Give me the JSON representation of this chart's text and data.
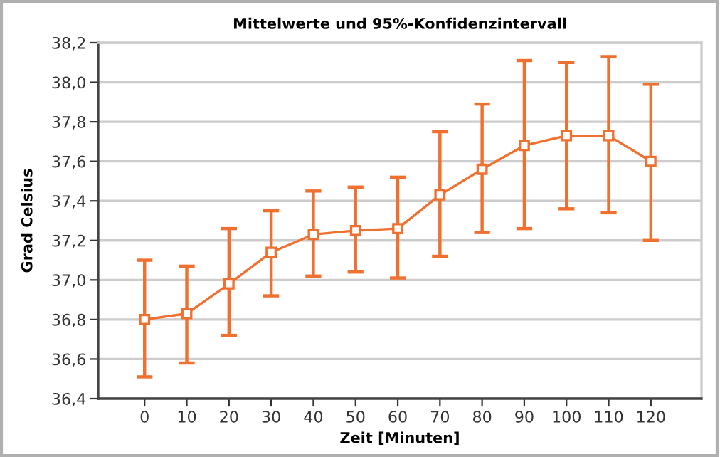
{
  "chart_data": {
    "type": "line",
    "title": "Mittelwerte und 95%-Konfidenzintervall",
    "xlabel": "Zeit [Minuten]",
    "ylabel": "Grad Celsius",
    "x": [
      0,
      10,
      20,
      30,
      40,
      50,
      60,
      70,
      80,
      90,
      100,
      110,
      120
    ],
    "series": [
      {
        "color": "#f07030",
        "values": [
          36.8,
          36.83,
          36.98,
          37.14,
          37.23,
          37.25,
          37.26,
          37.43,
          37.56,
          37.68,
          37.73,
          37.73,
          37.6
        ],
        "errors": [
          [
            36.51,
            37.1
          ],
          [
            36.58,
            37.07
          ],
          [
            36.72,
            37.26
          ],
          [
            36.92,
            37.35
          ],
          [
            37.02,
            37.45
          ],
          [
            37.04,
            37.47
          ],
          [
            37.01,
            37.52
          ],
          [
            37.12,
            37.75
          ],
          [
            37.24,
            37.89
          ],
          [
            37.26,
            38.11
          ],
          [
            37.36,
            38.1
          ],
          [
            37.34,
            38.13
          ],
          [
            37.2,
            37.99
          ]
        ]
      }
    ],
    "xlim": [
      -11,
      132
    ],
    "xticks": [
      0,
      10,
      20,
      30,
      40,
      50,
      60,
      70,
      80,
      90,
      100,
      110,
      120
    ],
    "ylim": [
      36.4,
      38.2
    ],
    "yticks": [
      {
        "value": 36.4,
        "label": "36,4"
      },
      {
        "value": 36.6,
        "label": "36,6"
      },
      {
        "value": 36.8,
        "label": "36,8"
      },
      {
        "value": 37.0,
        "label": "37,0"
      },
      {
        "value": 37.2,
        "label": "37,2"
      },
      {
        "value": 37.4,
        "label": "37,4"
      },
      {
        "value": 37.6,
        "label": "37,6"
      },
      {
        "value": 37.8,
        "label": "37,8"
      },
      {
        "value": 38.0,
        "label": "38,0"
      },
      {
        "value": 38.2,
        "label": "38,2"
      }
    ],
    "grid": "y",
    "marker": "square",
    "line_style": "solid"
  }
}
